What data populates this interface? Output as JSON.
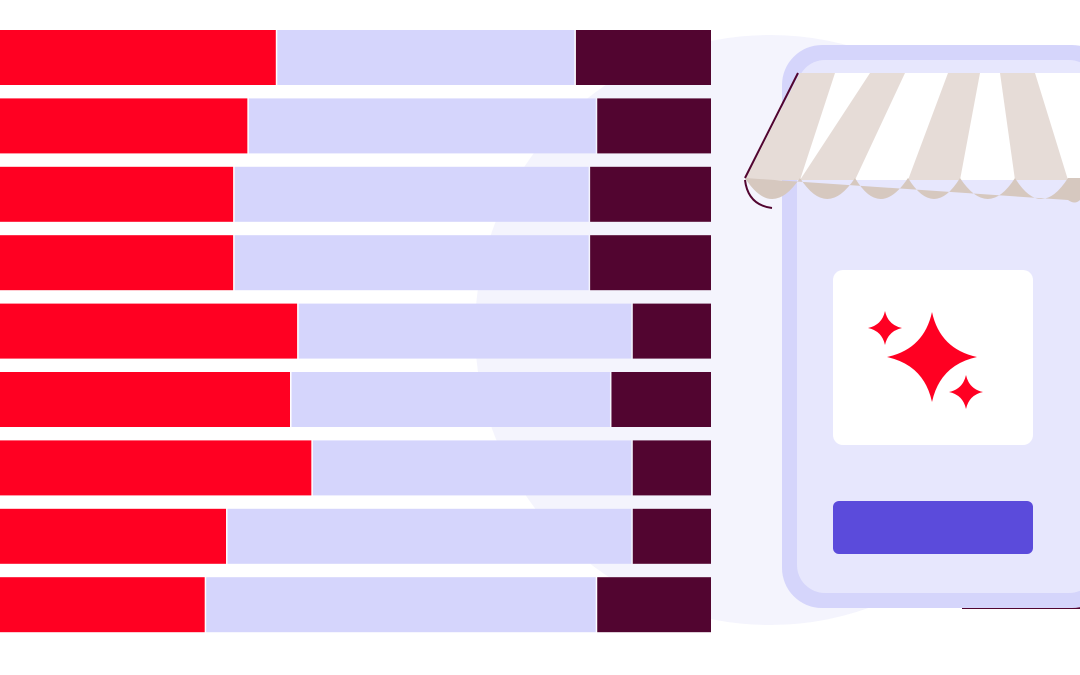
{
  "chart_data": {
    "type": "stacked-bar",
    "orientation": "horizontal",
    "categories": [
      null,
      null,
      null,
      null,
      null,
      null,
      null,
      null,
      null
    ],
    "xlim": [
      0,
      100
    ],
    "series": [
      {
        "color": "#ff0022",
        "values": [
          39,
          35,
          33,
          33,
          42,
          41,
          44,
          32,
          29
        ]
      },
      {
        "color": "#d5d5fc",
        "values": [
          42,
          49,
          50,
          50,
          47,
          45,
          45,
          57,
          55
        ]
      },
      {
        "color": "#520530",
        "values": [
          19,
          16,
          17,
          17,
          11,
          14,
          11,
          11,
          16
        ]
      }
    ]
  }
}
